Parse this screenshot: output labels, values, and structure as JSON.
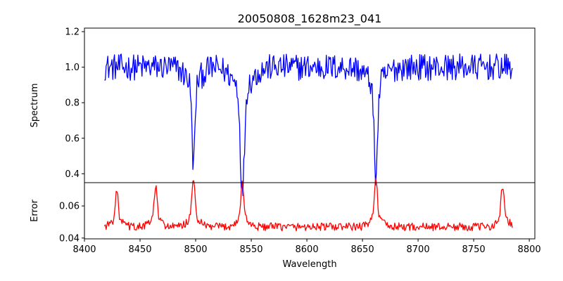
{
  "chart_data": {
    "title": "20050808_1628m23_041",
    "xlabel": "Wavelength",
    "panels": [
      {
        "type": "line",
        "ylabel": "Spectrum",
        "color": "#0000ff",
        "xlim": [
          8400,
          8805
        ],
        "ylim": [
          0.35,
          1.22
        ],
        "yticks": [
          0.4,
          0.6,
          0.8,
          1.0,
          1.2
        ],
        "ytick_labels": [
          "0.4",
          "0.6",
          "0.8",
          "1.0",
          "1.2"
        ],
        "baseline": 1.0,
        "noise": 0.075,
        "absorption_lines": [
          {
            "center": 8498,
            "depth": 0.46,
            "width": 1.4
          },
          {
            "center": 8542,
            "depth": 0.6,
            "width": 1.8
          },
          {
            "center": 8662,
            "depth": 0.51,
            "width": 1.6
          }
        ]
      },
      {
        "type": "line",
        "ylabel": "Error",
        "color": "#ff0000",
        "xlim": [
          8400,
          8805
        ],
        "ylim": [
          0.0395,
          0.0745
        ],
        "yticks": [
          0.04,
          0.06
        ],
        "ytick_labels": [
          "0.04",
          "0.06"
        ],
        "baseline": 0.047,
        "noise": 0.0025,
        "peaks": [
          {
            "center": 8429,
            "height": 0.018
          },
          {
            "center": 8464,
            "height": 0.02
          },
          {
            "center": 8498,
            "height": 0.024
          },
          {
            "center": 8542,
            "height": 0.022
          },
          {
            "center": 8662,
            "height": 0.025
          },
          {
            "center": 8776,
            "height": 0.021
          }
        ]
      }
    ],
    "x_range": [
      8418,
      8785
    ],
    "xticks": [
      8400,
      8450,
      8500,
      8550,
      8600,
      8650,
      8700,
      8750,
      8800
    ],
    "xtick_labels": [
      "8400",
      "8450",
      "8500",
      "8550",
      "8600",
      "8650",
      "8700",
      "8750",
      "8800"
    ],
    "grid": false
  }
}
